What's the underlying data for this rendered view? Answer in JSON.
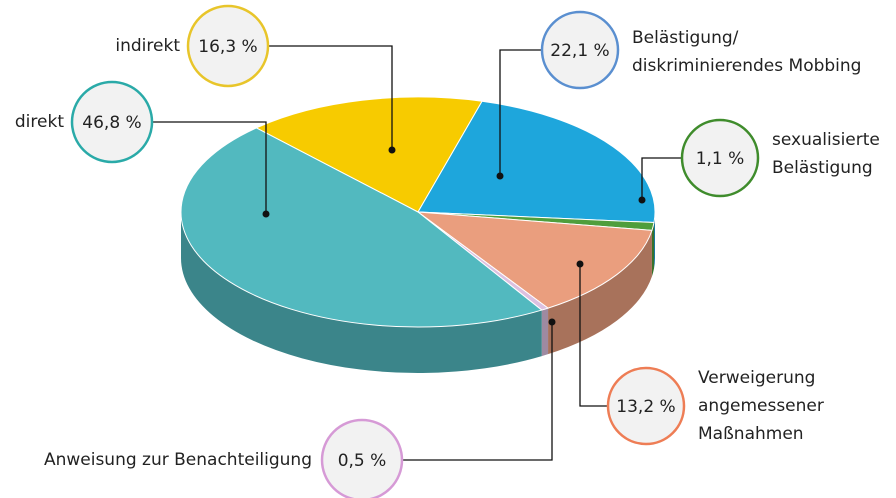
{
  "chart_data": {
    "type": "pie",
    "categories": [
      "indirekt",
      "Belästigung/\ndiskriminierendes Mobbing",
      "sexualisierte\nBelästigung",
      "Verweigerung\nangemessener\nMaßnahmen",
      "Anweisung zur Benachteiligung",
      "direkt"
    ],
    "values": [
      16.3,
      22.1,
      1.1,
      13.2,
      0.5,
      46.8
    ],
    "value_labels": [
      "16,3 %",
      "22,1 %",
      "1,1 %",
      "13,2 %",
      "0,5 %",
      "46,8 %"
    ],
    "colors": [
      "#f7cb00",
      "#1ea6dc",
      "#4f9e3c",
      "#ea9e7e",
      "#dcc0e0",
      "#52b9bf"
    ],
    "ring_colors": [
      "#e8c52a",
      "#5a8fd0",
      "#3f8c2c",
      "#ee7d55",
      "#d69ad6",
      "#2aaaa8"
    ]
  }
}
